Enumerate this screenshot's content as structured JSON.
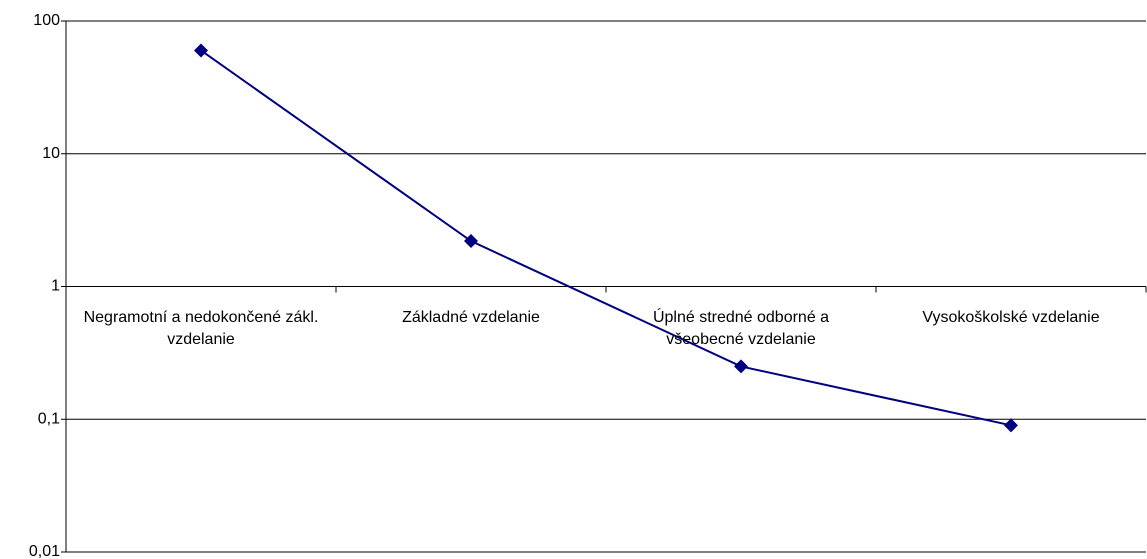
{
  "chart_data": {
    "type": "line",
    "categories": [
      "Negramotní a nedokončené zákl. vzdelanie",
      "Základné vzdelanie",
      "Úplné stredné odborné a všeobecné vzdelanie",
      "Vysokoškolské vzdelanie"
    ],
    "values": [
      60,
      2.2,
      0.25,
      0.09
    ],
    "color": "#000080",
    "ylim": [
      0.01,
      100
    ],
    "yticks": [
      {
        "value": 0.01,
        "label": "0,01"
      },
      {
        "value": 0.1,
        "label": "0,1"
      },
      1,
      10,
      100
    ],
    "log_scale": true,
    "grid": true
  }
}
